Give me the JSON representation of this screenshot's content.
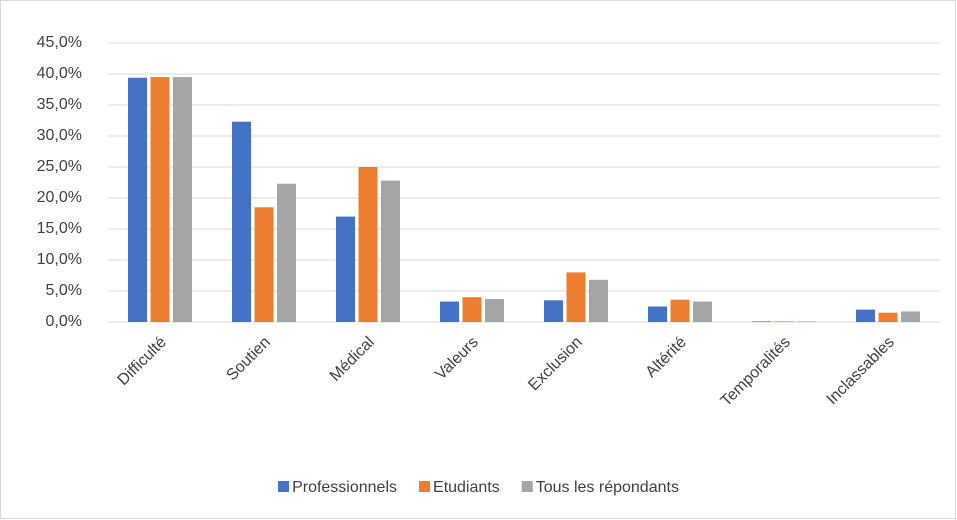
{
  "chart_data": {
    "type": "bar",
    "categories": [
      "Difficulté",
      "Soutien",
      "Médical",
      "Valeurs",
      "Exclusion",
      "Altérité",
      "Temporalités",
      "Inclassables"
    ],
    "series": [
      {
        "name": "Professionnels",
        "color": "#4472c4",
        "values": [
          39.4,
          32.3,
          17.0,
          3.3,
          3.5,
          2.5,
          0.1,
          2.0
        ]
      },
      {
        "name": "Etudiants",
        "color": "#ed7d31",
        "values": [
          39.5,
          18.5,
          25.0,
          4.0,
          8.0,
          3.6,
          0.1,
          1.5
        ]
      },
      {
        "name": "Tous les répondants",
        "color": "#a5a5a5",
        "values": [
          39.5,
          22.3,
          22.8,
          3.7,
          6.8,
          3.3,
          0.1,
          1.7
        ]
      }
    ],
    "ylim": [
      0,
      45
    ],
    "yticks": [
      {
        "value": 0,
        "label": "0,0%"
      },
      {
        "value": 5,
        "label": "5,0%"
      },
      {
        "value": 10,
        "label": "10,0%"
      },
      {
        "value": 15,
        "label": "15,0%"
      },
      {
        "value": 20,
        "label": "20,0%"
      },
      {
        "value": 25,
        "label": "25,0%"
      },
      {
        "value": 30,
        "label": "30,0%"
      },
      {
        "value": 35,
        "label": "35,0%"
      },
      {
        "value": 40,
        "label": "40,0%"
      },
      {
        "value": 45,
        "label": "45,0%"
      }
    ],
    "grid": true,
    "legend": "bottom"
  }
}
